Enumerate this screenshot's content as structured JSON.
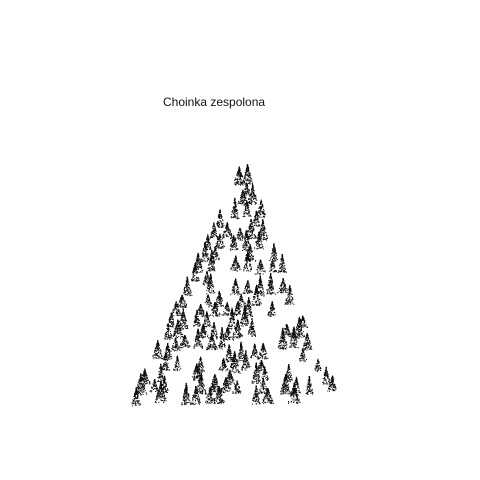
{
  "plot": {
    "title": "Choinka zespolona",
    "subject": "tree-of-small-trees",
    "mark_color": "#0a0a0a",
    "background": "#ffffff",
    "grid": false,
    "axes": false
  }
}
